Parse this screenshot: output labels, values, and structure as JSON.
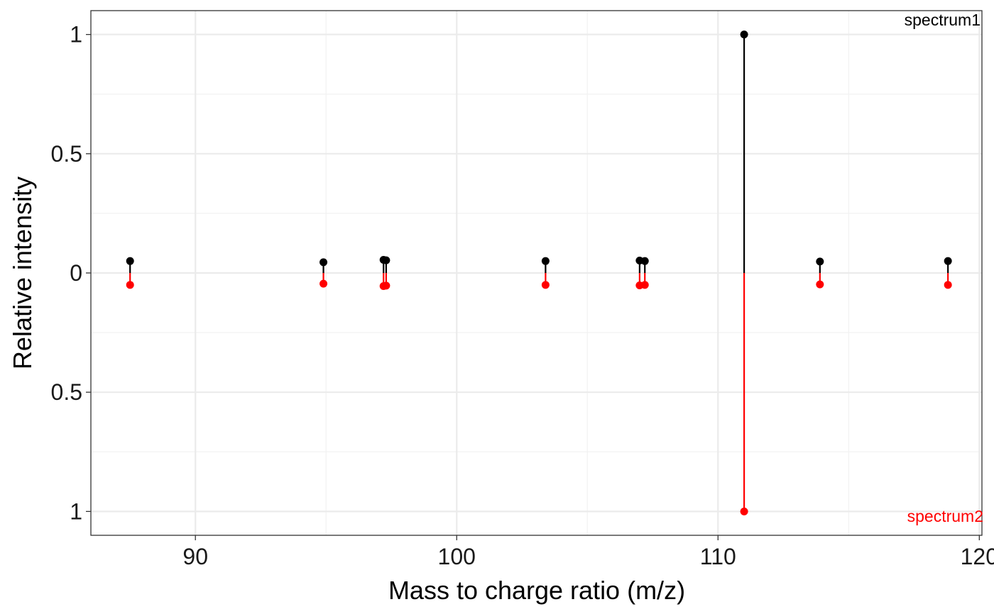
{
  "chart_data": {
    "type": "mirror-spectrum",
    "xlabel": "Mass to charge ratio (m/z)",
    "ylabel": "Relative intensity",
    "xlim": [
      86,
      120.1
    ],
    "ylim": [
      -1.1,
      1.1
    ],
    "x_ticks": [
      90,
      100,
      110,
      120
    ],
    "x_tick_labels": [
      "90",
      "100",
      "110",
      "120"
    ],
    "y_ticks": [
      1,
      0.5,
      0,
      -0.5,
      -1
    ],
    "y_tick_labels": [
      "1",
      "0.5",
      "0",
      "0.5",
      "1"
    ],
    "grid": true,
    "colors": {
      "spectrum1": "#000000",
      "spectrum2": "#ff0000"
    },
    "series": [
      {
        "name": "spectrum1",
        "label": "spectrum1",
        "color": "#000000",
        "direction": "up",
        "mz": [
          87.5,
          94.9,
          97.2,
          97.3,
          103.4,
          107.0,
          107.2,
          111.0,
          113.9,
          118.8
        ],
        "intensity": [
          0.05,
          0.045,
          0.055,
          0.053,
          0.05,
          0.052,
          0.05,
          1.0,
          0.048,
          0.05
        ]
      },
      {
        "name": "spectrum2",
        "label": "spectrum2",
        "color": "#ff0000",
        "direction": "down",
        "mz": [
          87.5,
          94.9,
          97.2,
          97.3,
          103.4,
          107.0,
          107.2,
          111.0,
          113.9,
          118.8
        ],
        "intensity": [
          0.05,
          0.045,
          0.055,
          0.053,
          0.05,
          0.052,
          0.05,
          1.0,
          0.048,
          0.05
        ]
      }
    ]
  }
}
